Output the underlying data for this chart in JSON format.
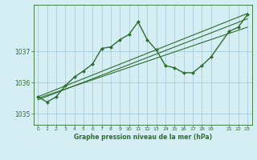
{
  "title": "Graphe pression niveau de la mer (hPa)",
  "bg_color": "#d4eef4",
  "grid_color": "#aaccdd",
  "line_color": "#2d6e2d",
  "xlim": [
    -0.5,
    23.5
  ],
  "ylim": [
    1034.65,
    1038.5
  ],
  "yticks": [
    1035,
    1036,
    1037
  ],
  "xticks": [
    0,
    1,
    2,
    3,
    4,
    5,
    6,
    7,
    8,
    9,
    10,
    11,
    12,
    13,
    14,
    15,
    16,
    17,
    18,
    19,
    21,
    22,
    23
  ],
  "lines": [
    {
      "x": [
        0,
        1,
        2,
        3,
        4,
        5,
        6,
        7,
        8,
        9,
        10,
        11,
        12,
        13,
        14,
        15,
        16,
        17,
        18,
        19,
        21,
        22,
        23
      ],
      "y": [
        1035.55,
        1035.38,
        1035.55,
        1035.9,
        1036.18,
        1036.38,
        1036.6,
        1037.1,
        1037.15,
        1037.38,
        1037.55,
        1037.95,
        1037.38,
        1037.05,
        1036.55,
        1036.48,
        1036.32,
        1036.32,
        1036.55,
        1036.82,
        1037.65,
        1037.78,
        1038.18
      ],
      "marker": "D",
      "markersize": 2.0,
      "linewidth": 1.0,
      "linestyle": "-"
    },
    {
      "x": [
        0,
        23
      ],
      "y": [
        1035.45,
        1038.05
      ],
      "marker": null,
      "linewidth": 0.8,
      "linestyle": "-"
    },
    {
      "x": [
        0,
        23
      ],
      "y": [
        1035.5,
        1037.78
      ],
      "marker": null,
      "linewidth": 0.8,
      "linestyle": "-"
    },
    {
      "x": [
        0,
        23
      ],
      "y": [
        1035.55,
        1038.22
      ],
      "marker": null,
      "linewidth": 0.8,
      "linestyle": "-"
    }
  ]
}
